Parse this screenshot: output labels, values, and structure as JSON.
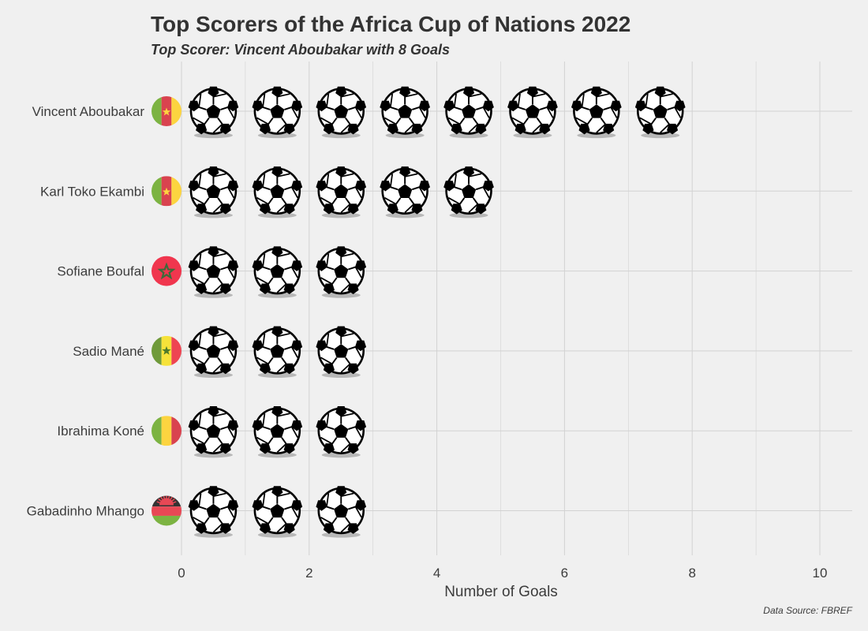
{
  "chart_data": {
    "type": "bar",
    "title": "Top Scorers of the Africa Cup of Nations 2022",
    "subtitle": "Top Scorer: Vincent Aboubakar with 8 Goals",
    "xlabel": "Number of Goals",
    "ylabel": "",
    "caption": "Data Source: FBREF",
    "xlim": [
      0,
      10
    ],
    "xticks": [
      0,
      2,
      4,
      6,
      8,
      10
    ],
    "grid": true,
    "legend": "none",
    "mark": "football-icon",
    "categories": [
      "Vincent Aboubakar",
      "Karl Toko Ekambi",
      "Sofiane Boufal",
      "Sadio Mané",
      "Ibrahima Koné",
      "Gabadinho Mhango"
    ],
    "values": [
      8,
      5,
      3,
      3,
      3,
      3
    ],
    "flags": [
      "cameroon-flag-icon",
      "cameroon-flag-icon",
      "morocco-flag-icon",
      "senegal-flag-icon",
      "mali-flag-icon",
      "malawi-flag-icon"
    ]
  },
  "colors": {
    "background": "#f0f0f0",
    "grid": "#d2d2d2",
    "text": "#3c3c3c",
    "title": "#333333",
    "flag_green": "#7cb342",
    "flag_red": "#e84855",
    "flag_yellow": "#fcd440",
    "flag_black": "#333333"
  }
}
